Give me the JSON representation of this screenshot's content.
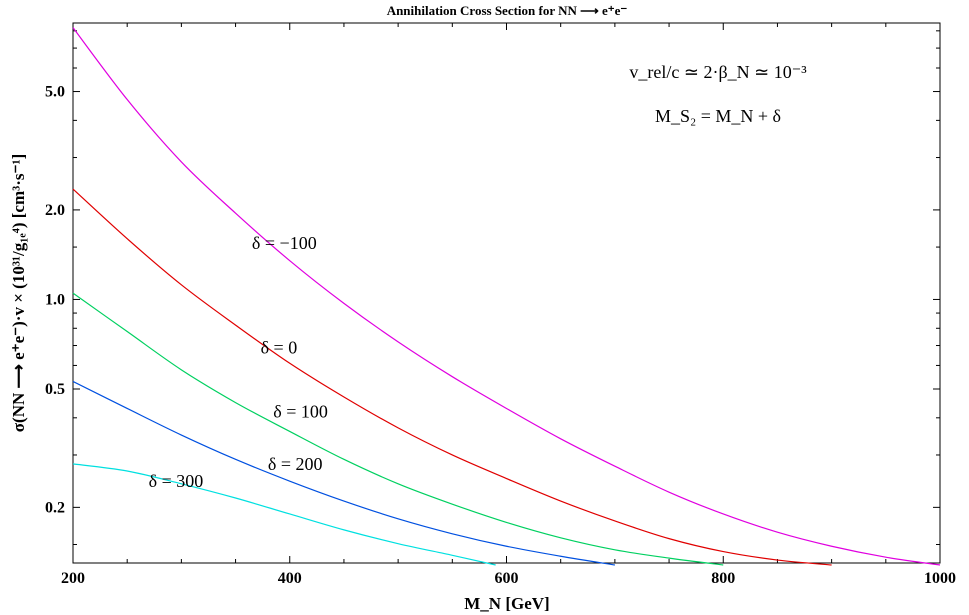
{
  "chart_data": {
    "type": "line",
    "title": "Annihilation Cross Section for NN ⟶ e⁺e⁻",
    "xlabel": "M_N [GeV]",
    "ylabel": "σ(NN ⟶ e⁺e⁻)·v × (10³¹/g₁ₑ⁴) [cm³·s⁻¹]",
    "yscale": "log",
    "xlim": [
      200,
      1000
    ],
    "ylim": [
      0.13,
      8.5
    ],
    "xticks": [
      200,
      400,
      600,
      800,
      1000
    ],
    "yticks": [
      0.2,
      0.5,
      1.0,
      2.0,
      5.0
    ],
    "ytick_labels": [
      "0.2",
      "0.5",
      "1.0",
      "2.0",
      "5.0"
    ],
    "grid": false,
    "series": [
      {
        "name": "δ = −100",
        "color": "#e000e0",
        "x": [
          200,
          250,
          300,
          350,
          400,
          450,
          500,
          550,
          600,
          650,
          700,
          750,
          800,
          850,
          900,
          950,
          1000
        ],
        "y": [
          8.2,
          4.7,
          2.9,
          1.95,
          1.35,
          0.97,
          0.72,
          0.55,
          0.43,
          0.34,
          0.275,
          0.225,
          0.19,
          0.165,
          0.148,
          0.136,
          0.128
        ]
      },
      {
        "name": "δ = 0",
        "color": "#e00000",
        "x": [
          200,
          250,
          300,
          350,
          400,
          450,
          500,
          550,
          600,
          650,
          700,
          750,
          800,
          850,
          900
        ],
        "y": [
          2.35,
          1.6,
          1.12,
          0.82,
          0.61,
          0.47,
          0.37,
          0.3,
          0.25,
          0.21,
          0.18,
          0.157,
          0.142,
          0.133,
          0.128
        ]
      },
      {
        "name": "δ = 100",
        "color": "#00d060",
        "x": [
          200,
          250,
          300,
          350,
          400,
          450,
          500,
          550,
          600,
          650,
          700,
          750,
          800
        ],
        "y": [
          1.05,
          0.78,
          0.58,
          0.45,
          0.36,
          0.29,
          0.24,
          0.205,
          0.178,
          0.158,
          0.144,
          0.135,
          0.128
        ]
      },
      {
        "name": "δ = 200",
        "color": "#0050e0",
        "x": [
          200,
          250,
          300,
          350,
          400,
          450,
          500,
          550,
          600,
          650,
          700
        ],
        "y": [
          0.53,
          0.43,
          0.35,
          0.29,
          0.245,
          0.21,
          0.183,
          0.163,
          0.148,
          0.137,
          0.128
        ]
      },
      {
        "name": "δ = 300",
        "color": "#00e0e0",
        "x": [
          200,
          250,
          300,
          350,
          400,
          450,
          500,
          550,
          590
        ],
        "y": [
          0.28,
          0.265,
          0.24,
          0.215,
          0.19,
          0.168,
          0.151,
          0.138,
          0.128
        ]
      }
    ],
    "curve_labels": [
      {
        "text": "δ = −100",
        "x": 395,
        "y": 1.55
      },
      {
        "text": "δ = 0",
        "x": 390,
        "y": 0.69
      },
      {
        "text": "δ = 100",
        "x": 410,
        "y": 0.42
      },
      {
        "text": "δ = 200",
        "x": 405,
        "y": 0.28
      },
      {
        "text": "δ = 300",
        "x": 295,
        "y": 0.245
      }
    ],
    "annotations": [
      "v_rel/c ≃ 2·β_N ≃ 10⁻³",
      "M_S₂ = M_N + δ"
    ]
  }
}
